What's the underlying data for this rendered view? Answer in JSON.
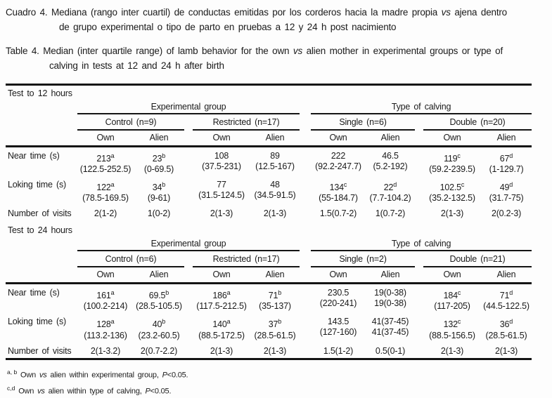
{
  "captions": {
    "es": {
      "line1_pre": "Cuadro 4. Mediana (rango inter cuartil) de conductas emitidas por los corderos hacia la madre propia",
      "line1_italic": "vs",
      "line1_post": "ajena dentro",
      "line2": "de grupo experimental o tipo de parto en pruebas a 12 y 24 h post nacimiento"
    },
    "en": {
      "line1_pre": "Table 4. Median (inter quartile range) of lamb behavior for the own",
      "line1_italic": "vs",
      "line1_post": "alien mother in experimental groups or type of",
      "line2": "calving in tests at 12 and 24 h after birth"
    }
  },
  "table": {
    "sections": [
      {
        "label": "Test to 12 hours",
        "spanners": [
          {
            "label": "Experimental group",
            "groups": [
              "Control (n=9)",
              "Restricted (n=17)"
            ]
          },
          {
            "label": "Type of calving",
            "groups": [
              "Single (n=6)",
              "Double (n=20)"
            ]
          }
        ],
        "subheaders": [
          "Own",
          "Alien",
          "Own",
          "Alien",
          "Own",
          "Alien",
          "Own",
          "Alien"
        ],
        "rows": [
          {
            "label": "Near time (s)",
            "cells": [
              {
                "v": "213",
                "sup": "a",
                "r": "(122.5-252.5)"
              },
              {
                "v": "23",
                "sup": "b",
                "r": "(0-69.5)"
              },
              {
                "v": "108",
                "sup": "",
                "r": "(37.5-231)"
              },
              {
                "v": "89",
                "sup": "",
                "r": "(12.5-167)"
              },
              {
                "v": "222",
                "sup": "",
                "r": "(92.2-247.7)"
              },
              {
                "v": "46.5",
                "sup": "",
                "r": "(5.2-192)"
              },
              {
                "v": "119",
                "sup": "c",
                "r": "(59.2-239.5)"
              },
              {
                "v": "67",
                "sup": "d",
                "r": "(1-129.7)"
              }
            ]
          },
          {
            "label": "Loking time (s)",
            "cells": [
              {
                "v": "122",
                "sup": "a",
                "r": "(78.5-169.5)"
              },
              {
                "v": "34",
                "sup": "b",
                "r": "(9-61)"
              },
              {
                "v": "77",
                "sup": "",
                "r": "(31.5-124.5)"
              },
              {
                "v": "48",
                "sup": "",
                "r": "(34.5-91.5)"
              },
              {
                "v": "134",
                "sup": "c",
                "r": "(55-184.7)"
              },
              {
                "v": "22",
                "sup": "d",
                "r": "(7.7-104.2)"
              },
              {
                "v": "102.5",
                "sup": "c",
                "r": "(35.2-132.5)"
              },
              {
                "v": "49",
                "sup": "d",
                "r": "(31.7-75)"
              }
            ]
          },
          {
            "label": "Number of visits",
            "cells": [
              {
                "v": "2(1-2)"
              },
              {
                "v": "1(0-2)"
              },
              {
                "v": "2(1-3)"
              },
              {
                "v": "2(1-3)"
              },
              {
                "v": "1.5(0.7-2)"
              },
              {
                "v": "1(0.7-2)"
              },
              {
                "v": "2(1-3)"
              },
              {
                "v": "2(0.2-3)"
              }
            ]
          }
        ]
      },
      {
        "label": "Test to 24 hours",
        "spanners": [
          {
            "label": "Experimental group",
            "groups": [
              "Control (n=6)",
              "Restricted (n=17)"
            ]
          },
          {
            "label": "Type of calving",
            "groups": [
              "Single (n=2)",
              "Double (n=21)"
            ]
          }
        ],
        "subheaders": [
          "Own",
          "Alien",
          "Own",
          "Alien",
          "Own",
          "Alien",
          "Own",
          "Alien"
        ],
        "rows": [
          {
            "label": "Near time (s)",
            "cells": [
              {
                "v": "161",
                "sup": "a",
                "r": "(100.2-214)"
              },
              {
                "v": "69.5",
                "sup": "b",
                "r": "(28.5-105.5)"
              },
              {
                "v": "186",
                "sup": "a",
                "r": "(117.5-212.5)"
              },
              {
                "v": "71",
                "sup": "b",
                "r": "(35-137)"
              },
              {
                "v": "230.5",
                "sup": "",
                "r": "(220-241)"
              },
              {
                "v": "19(0-38)",
                "sup": "",
                "r": "19(0-38)"
              },
              {
                "v": "184",
                "sup": "c",
                "r": "(117-205)"
              },
              {
                "v": "71",
                "sup": "d",
                "r": "(44.5-122.5)"
              }
            ]
          },
          {
            "label": "Loking time (s)",
            "cells": [
              {
                "v": "128",
                "sup": "a",
                "r": "(113.2-136)"
              },
              {
                "v": "40",
                "sup": "b",
                "r": "(23.2-60.5)"
              },
              {
                "v": "140",
                "sup": "a",
                "r": "(88.5-172.5)"
              },
              {
                "v": "37",
                "sup": "b",
                "r": "(28.5-61.5)"
              },
              {
                "v": "143.5",
                "sup": "",
                "r": "(127-160)"
              },
              {
                "v": "41(37-45)",
                "sup": "",
                "r": "41(37-45)"
              },
              {
                "v": "132",
                "sup": "c",
                "r": "(88.5-156.5)"
              },
              {
                "v": "36",
                "sup": "d",
                "r": "(28.5-61.5)"
              }
            ]
          },
          {
            "label": "Number of visits",
            "cells": [
              {
                "v": "2(1-3.2)"
              },
              {
                "v": "2(0.7-2.2)"
              },
              {
                "v": "2(1-3)"
              },
              {
                "v": "2(1-3)"
              },
              {
                "v": "1.5(1-2)"
              },
              {
                "v": "0.5(0-1)"
              },
              {
                "v": "2(1-3)"
              },
              {
                "v": "2(1-3)"
              }
            ]
          }
        ]
      }
    ]
  },
  "footnotes": [
    {
      "sup": "a, b",
      "pre": "Own",
      "vs": "vs",
      "mid": "alien within experimental group,",
      "p": "P",
      "post": "<0.05."
    },
    {
      "sup": "c,d",
      "pre": "Own",
      "vs": "vs",
      "mid": "alien within type of calving,",
      "p": "P",
      "post": "<0.05."
    }
  ]
}
